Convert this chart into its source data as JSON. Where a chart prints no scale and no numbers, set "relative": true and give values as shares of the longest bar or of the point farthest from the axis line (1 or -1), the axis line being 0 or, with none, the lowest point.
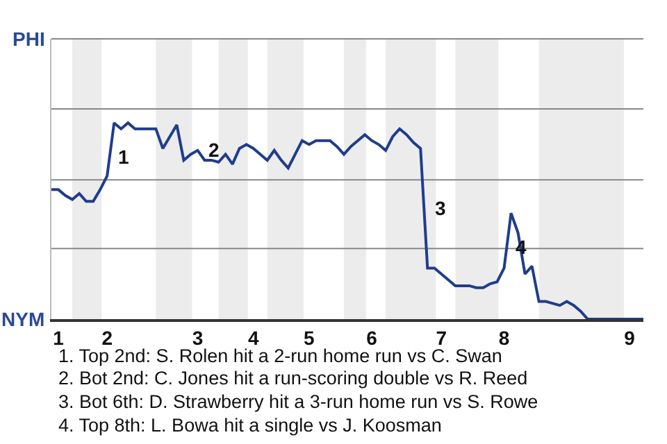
{
  "chart_data": {
    "type": "line",
    "relative": true,
    "categories": [
      null,
      "1",
      null,
      null,
      null,
      null,
      null,
      null,
      "2",
      null,
      null,
      null,
      null,
      null,
      null,
      null,
      null,
      null,
      null,
      null,
      null,
      "3",
      null,
      null,
      null,
      null,
      null,
      null,
      null,
      "4",
      null,
      null,
      null,
      null,
      null,
      null,
      null,
      "5",
      null,
      null,
      null,
      null,
      null,
      null,
      null,
      null,
      "6",
      null,
      null,
      null,
      null,
      null,
      null,
      null,
      null,
      null,
      "7",
      null,
      null,
      null,
      null,
      null,
      null,
      null,
      null,
      "8",
      null,
      null,
      null,
      null,
      null,
      null,
      null,
      null,
      null,
      null,
      null,
      null,
      null,
      null,
      null,
      null,
      null,
      "9",
      null,
      null
    ],
    "series": [
      {
        "color": "#1f3d8c",
        "values": [
          0.66,
          0.66,
          0.63,
          0.61,
          0.64,
          0.6,
          0.6,
          0.66,
          0.73,
          1,
          0.97,
          1,
          0.97,
          0.97,
          0.97,
          0.97,
          0.87,
          0.93,
          0.99,
          0.81,
          0.84,
          0.86,
          0.81,
          0.81,
          0.8,
          0.84,
          0.79,
          0.87,
          0.89,
          0.87,
          0.84,
          0.81,
          0.86,
          0.81,
          0.77,
          0.84,
          0.91,
          0.89,
          0.91,
          0.91,
          0.91,
          0.88,
          0.84,
          0.88,
          0.91,
          0.94,
          0.91,
          0.89,
          0.86,
          0.93,
          0.97,
          0.94,
          0.9,
          0.87,
          0.26,
          0.26,
          0.23,
          0.2,
          0.17,
          0.17,
          0.17,
          0.16,
          0.16,
          0.18,
          0.19,
          0.26,
          0.54,
          0.44,
          0.23,
          0.27,
          0.09,
          0.09,
          0.08,
          0.07,
          0.09,
          0.07,
          0.04,
          0,
          0,
          0,
          0,
          0,
          0,
          0,
          0,
          0
        ]
      }
    ],
    "marker": "none",
    "line_style": "solid",
    "ref_lines": [
      {
        "axis": "y",
        "value": 0.36,
        "color": "#888888"
      },
      {
        "axis": "y",
        "value": 0.71,
        "color": "#888888"
      }
    ],
    "annotations": [
      "PHI",
      "NYM",
      "3",
      {
        "text": "1",
        "x": "2",
        "y": 0.83
      },
      {
        "text": "2",
        "x": "3",
        "y": 0.86
      },
      {
        "text": "4",
        "x": "8",
        "y": 0.37
      },
      "1. Top 2nd: S. Rolen hit a 2-run home run vs C. Swan",
      "2. Bot 2nd: C. Jones hit a run-scoring double vs R. Reed",
      "3. Bot 6th: D. Strawberry hit a 3-run home run vs S. Rowe",
      "4. Top 8th: L. Bowa hit a single vs J. Koosman"
    ]
  }
}
